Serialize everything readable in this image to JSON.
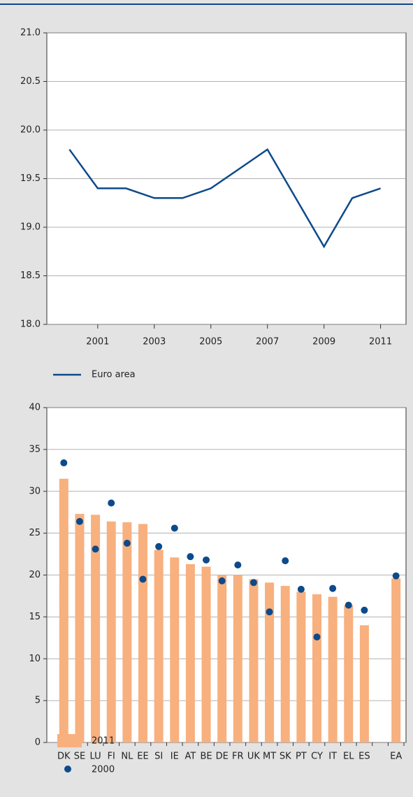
{
  "chart_data": [
    {
      "type": "line",
      "x": [
        2000,
        2001,
        2002,
        2003,
        2004,
        2005,
        2006,
        2007,
        2008,
        2009,
        2010,
        2011
      ],
      "series": [
        {
          "name": "Euro area",
          "color": "#0d4a8a",
          "values": [
            19.8,
            19.4,
            19.4,
            19.3,
            19.3,
            19.4,
            19.6,
            19.8,
            19.3,
            18.8,
            19.3,
            19.4
          ]
        }
      ],
      "xlim": [
        1999.2,
        2011.9
      ],
      "xticks": [
        2001,
        2003,
        2005,
        2007,
        2009,
        2011
      ],
      "ylim": [
        18,
        21
      ],
      "yticks": [
        {
          "value": 18,
          "label": "18.0"
        },
        18.5,
        {
          "value": 19,
          "label": "19.0"
        },
        19.5,
        {
          "value": 20,
          "label": "20.0"
        },
        20.5,
        {
          "value": 21,
          "label": "21.0"
        }
      ],
      "grid": true
    },
    {
      "type": "bar-dot",
      "categories": [
        "DK",
        "SE",
        "LU",
        "FI",
        "NL",
        "EE",
        "SI",
        "IE",
        "AT",
        "BE",
        "DE",
        "FR",
        "UK",
        "MT",
        "SK",
        "PT",
        "CY",
        "IT",
        "EL",
        "ES",
        null,
        "EA"
      ],
      "series": [
        {
          "name": "2011",
          "color": "#f8b07e",
          "values": [
            31.5,
            27.3,
            27.2,
            26.4,
            26.3,
            26.1,
            23.0,
            22.1,
            21.3,
            21.0,
            20.0,
            20.0,
            19.5,
            19.1,
            18.7,
            18.0,
            17.7,
            17.4,
            16.4,
            14.0,
            null,
            19.6
          ]
        },
        {
          "name": "2000",
          "color": "#0d4a8a",
          "values": [
            33.4,
            26.4,
            23.1,
            28.6,
            23.8,
            19.5,
            23.4,
            25.6,
            22.2,
            21.8,
            19.3,
            21.2,
            19.1,
            15.6,
            21.7,
            18.3,
            12.6,
            18.4,
            16.4,
            15.8,
            null,
            19.9
          ]
        }
      ],
      "ylim": [
        0,
        40
      ],
      "yticks": [
        0,
        5,
        10,
        15,
        20,
        25,
        30,
        35,
        40
      ],
      "grid": true
    }
  ]
}
